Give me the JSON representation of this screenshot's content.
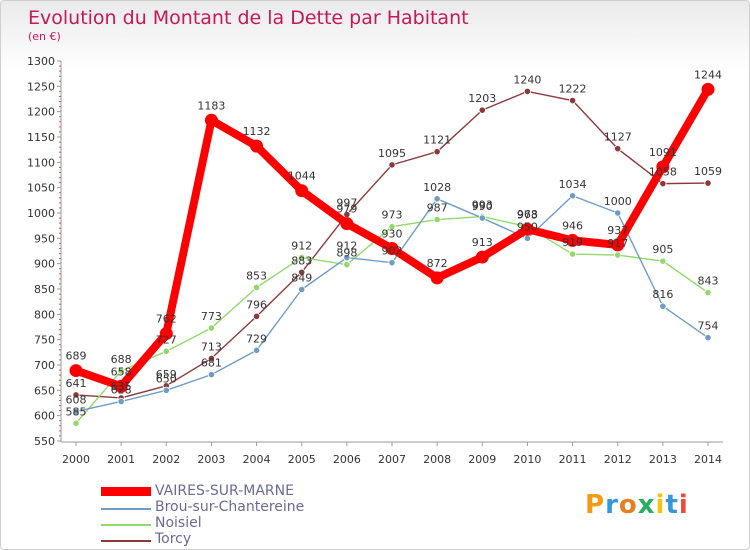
{
  "header": {
    "title": "Evolution du Montant de la Dette par Habitant",
    "unit": "(en €)"
  },
  "logo": {
    "text": "Proxiti",
    "letter_colors": [
      "#f39c12",
      "#3498db",
      "#e67e22",
      "#27ae60",
      "#f1c40f",
      "#3498db",
      "#e74c3c"
    ]
  },
  "chart_data": {
    "type": "line",
    "title": "Evolution du Montant de la Dette par Habitant",
    "ylabel": "(en €)",
    "xlabel": "",
    "x": [
      "2000",
      "2001",
      "2002",
      "2003",
      "2004",
      "2005",
      "2006",
      "2007",
      "2008",
      "2009",
      "2010",
      "2011",
      "2012",
      "2013",
      "2014"
    ],
    "ylim": [
      550,
      1300
    ],
    "yticks": [
      550,
      600,
      650,
      700,
      750,
      800,
      850,
      900,
      950,
      1000,
      1050,
      1100,
      1150,
      1200,
      1250,
      1300
    ],
    "grid": false,
    "legend_position": "bottom-left",
    "series": [
      {
        "name": "VAIRES-SUR-MARNE",
        "color": "#ff0000",
        "values": [
          689,
          658,
          762,
          1183,
          1132,
          1044,
          979,
          930,
          872,
          913,
          968,
          946,
          937,
          1091,
          1244
        ]
      },
      {
        "name": "Brou-sur-Chantereine",
        "color": "#6f9cc5",
        "values": [
          608,
          628,
          650,
          681,
          729,
          849,
          912,
          902,
          1028,
          990,
          950,
          1034,
          1000,
          816,
          754
        ]
      },
      {
        "name": "Noisiel",
        "color": "#91d96c",
        "values": [
          585,
          688,
          727,
          773,
          853,
          912,
          898,
          973,
          987,
          993,
          973,
          919,
          917,
          905,
          843
        ]
      },
      {
        "name": "Torcy",
        "color": "#8b3a3a",
        "values": [
          641,
          635,
          659,
          713,
          796,
          883,
          997,
          1095,
          1121,
          1203,
          1240,
          1222,
          1127,
          1058,
          1059
        ]
      }
    ]
  }
}
